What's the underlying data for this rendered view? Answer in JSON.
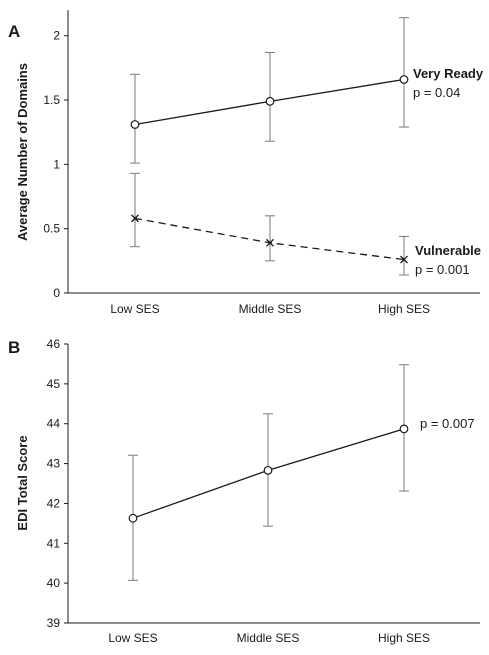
{
  "chart_data": [
    {
      "panel": "A",
      "type": "line",
      "categories": [
        "Low SES",
        "Middle SES",
        "High SES"
      ],
      "ylabel": "Average Number of Domains",
      "ylim": [
        0,
        2.2
      ],
      "yticks": [
        "0",
        "0.5",
        "1",
        "1.5",
        "2"
      ],
      "grid": false,
      "series": [
        {
          "name": "Very Ready",
          "annotation": "p = 0.04",
          "marker": "circle",
          "line": "solid",
          "values": [
            1.31,
            1.49,
            1.66
          ],
          "err_low": [
            1.01,
            1.18,
            1.29
          ],
          "err_high": [
            1.7,
            1.87,
            2.14
          ]
        },
        {
          "name": "Vulnerable",
          "annotation": "p = 0.001",
          "marker": "x",
          "line": "dashed",
          "values": [
            0.58,
            0.39,
            0.26
          ],
          "err_low": [
            0.36,
            0.25,
            0.14
          ],
          "err_high": [
            0.93,
            0.6,
            0.44
          ]
        }
      ]
    },
    {
      "panel": "B",
      "type": "line",
      "categories": [
        "Low SES",
        "Middle SES",
        "High SES"
      ],
      "ylabel": "EDI Total Score",
      "ylim": [
        39,
        46
      ],
      "yticks": [
        "39",
        "40",
        "41",
        "42",
        "43",
        "44",
        "45",
        "46"
      ],
      "grid": false,
      "series": [
        {
          "annotation": "p = 0.007",
          "marker": "circle",
          "line": "solid",
          "values": [
            41.63,
            42.83,
            43.87
          ],
          "err_low": [
            40.07,
            41.43,
            42.31
          ],
          "err_high": [
            43.21,
            44.25,
            45.48
          ]
        }
      ]
    }
  ]
}
